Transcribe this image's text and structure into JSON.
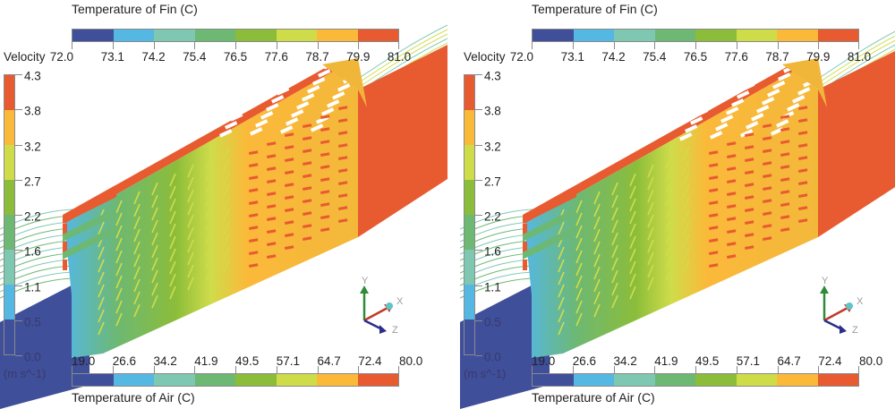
{
  "figure": {
    "panels": [
      {
        "id": "a",
        "fin_legend": {
          "title": "Temperature of Fin (C)",
          "ticks": [
            "72.0",
            "73.1",
            "74.2",
            "75.4",
            "76.5",
            "77.6",
            "78.7",
            "79.9",
            "81.0"
          ]
        },
        "velocity_legend": {
          "title": "Velocity",
          "ticks": [
            "4.3",
            "3.8",
            "3.2",
            "2.7",
            "2.2",
            "1.6",
            "1.1",
            "0.5",
            "0.0"
          ],
          "unit": "(m s^-1)"
        },
        "air_legend": {
          "title": "Temperature of Air (C)",
          "ticks": [
            "19.0",
            "26.6",
            "34.2",
            "41.9",
            "49.5",
            "57.1",
            "64.7",
            "72.4",
            "80.0"
          ]
        },
        "axes": {
          "y": "Y",
          "x": "X",
          "z": "Z"
        }
      },
      {
        "id": "b",
        "fin_legend": {
          "title": "Temperature of Fin (C)",
          "ticks": [
            "72.0",
            "73.1",
            "74.2",
            "75.4",
            "76.5",
            "77.6",
            "78.7",
            "79.9",
            "81.0"
          ]
        },
        "velocity_legend": {
          "title": "Velocity",
          "ticks": [
            "4.3",
            "3.8",
            "3.2",
            "2.7",
            "2.2",
            "1.6",
            "1.1",
            "0.5",
            "0.0"
          ],
          "unit": "(m s^-1)"
        },
        "air_legend": {
          "title": "Temperature of Air (C)",
          "ticks": [
            "19.0",
            "26.6",
            "34.2",
            "41.9",
            "49.5",
            "57.1",
            "64.7",
            "72.4",
            "80.0"
          ]
        },
        "axes": {
          "y": "Y",
          "x": "X",
          "z": "Z"
        }
      }
    ],
    "colormap": [
      "#3f4f9a",
      "#55b8e2",
      "#7ec8b2",
      "#6db872",
      "#8cbd3a",
      "#cfdc4a",
      "#fbb93a",
      "#e85a30"
    ],
    "colors": {
      "duct_cold": "#3f4f9a",
      "duct_hot": "#e85a30",
      "fin_hot": "#f0b63a",
      "axis_y": "#2e8b3a",
      "axis_x": "#c0392b",
      "axis_z": "#2c2f8a",
      "axis_origin": "#5cc6c8"
    }
  }
}
